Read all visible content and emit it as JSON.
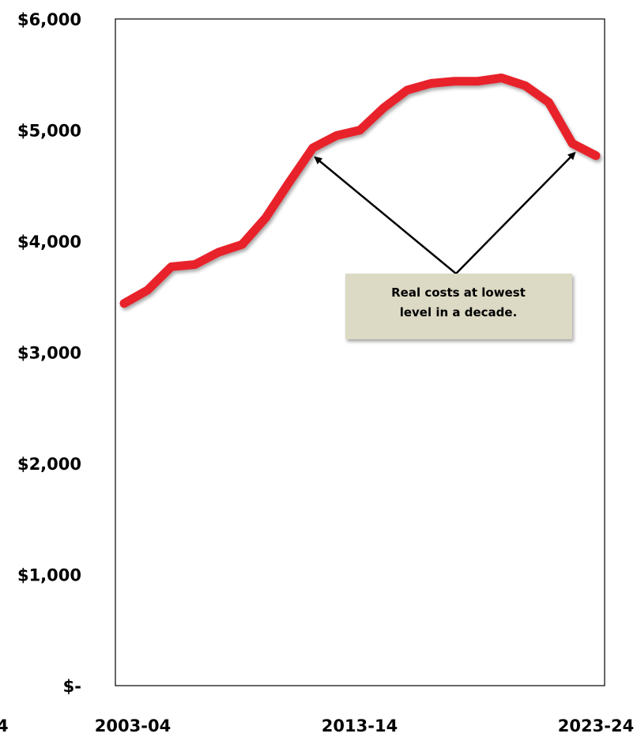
{
  "chart_data": {
    "type": "line",
    "title": "",
    "xlabel": "",
    "ylabel": "",
    "x_tick_labels": [
      "2003-04",
      "2013-14",
      "2023-24"
    ],
    "y_tick_labels": [
      "$-",
      "$1,000",
      "$2,000",
      "$3,000",
      "$4,000",
      "$5,000",
      "$6,000"
    ],
    "ylim": [
      0,
      6000
    ],
    "grid": false,
    "series": [
      {
        "color": "#e8202a",
        "x": [
          "2003-04",
          "2004-05",
          "2005-06",
          "2006-07",
          "2007-08",
          "2008-09",
          "2009-10",
          "2010-11",
          "2011-12",
          "2012-13",
          "2013-14",
          "2014-15",
          "2015-16",
          "2016-17",
          "2017-18",
          "2018-19",
          "2019-20",
          "2020-21",
          "2021-22",
          "2022-23",
          "2023-24"
        ],
        "values": [
          3440,
          3560,
          3770,
          3790,
          3900,
          3970,
          4210,
          4530,
          4840,
          4950,
          5000,
          5200,
          5360,
          5420,
          5440,
          5440,
          5470,
          5400,
          5250,
          4880,
          4770
        ]
      }
    ],
    "annotation": {
      "line1": "Real costs at lowest",
      "line2": "level in a decade.",
      "arrow_targets": [
        "2011-12",
        "2022-23"
      ]
    },
    "cropped_left_label": "4"
  }
}
